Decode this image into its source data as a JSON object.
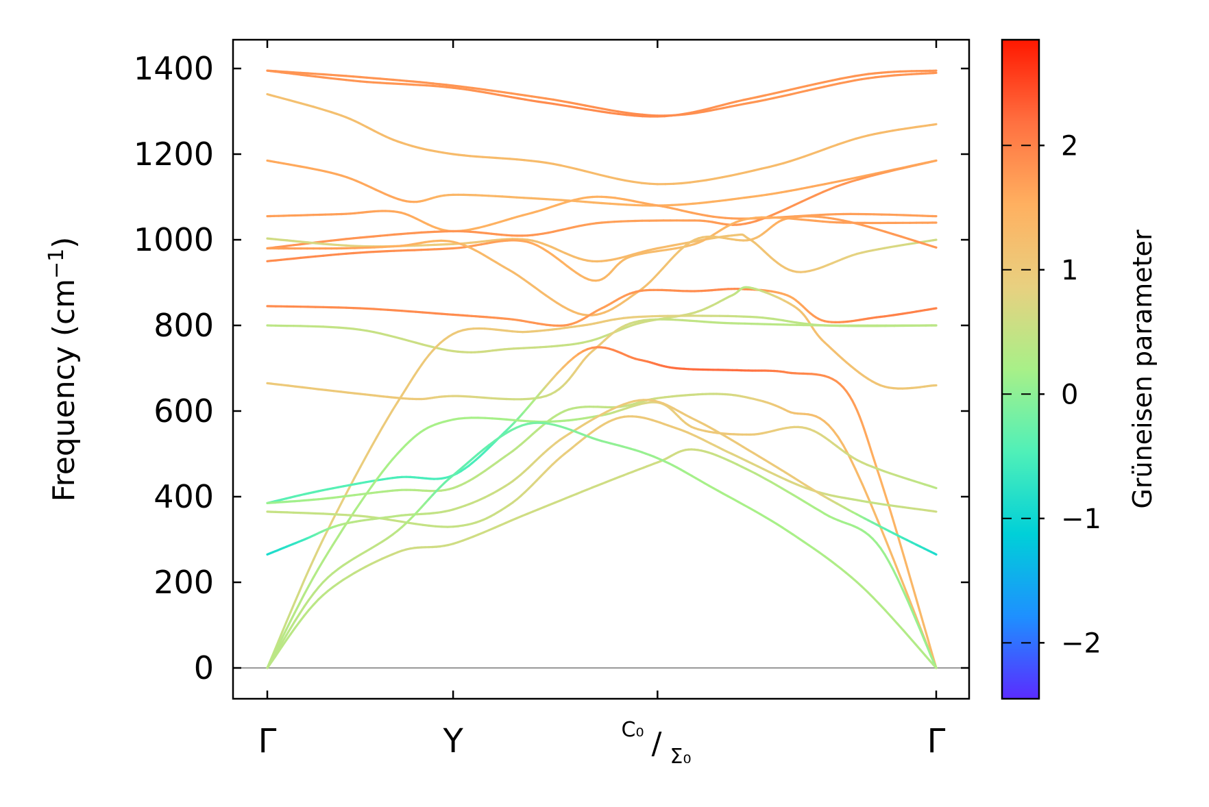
{
  "chart_data": {
    "type": "line",
    "title": "",
    "xlabel": "",
    "ylabel": "Frequency (cm",
    "ylabel_sup": "−1",
    "ylabel_close": ")",
    "ylim": [
      -70,
      1460
    ],
    "yticks": [
      0,
      200,
      400,
      600,
      800,
      1000,
      1200,
      1400
    ],
    "ytick_labels": [
      "0",
      "200",
      "400",
      "600",
      "800",
      "1000",
      "1200",
      "1400"
    ],
    "x_range": [
      0,
      3.6
    ],
    "x_ticks": [
      {
        "x": 0.0,
        "label": "Γ"
      },
      {
        "x": 1.0,
        "label": "Y"
      },
      {
        "x": 2.1,
        "label": "C₀/Σ₀",
        "label_top": "C₀",
        "label_bottom": "Σ₀"
      },
      {
        "x": 3.6,
        "label": "Γ"
      }
    ],
    "zero_line": 0,
    "colorbar": {
      "label": "Grüneisen parameter",
      "range": [
        -2.45,
        2.85
      ],
      "ticks": [
        -2,
        -1,
        0,
        1,
        2
      ],
      "tick_labels": [
        "−2",
        "−1",
        "0",
        "1",
        "2"
      ],
      "colormap": [
        "#5a2cff",
        "#1e90ff",
        "#00d0d8",
        "#50f0b8",
        "#a8f088",
        "#e8d080",
        "#ffb060",
        "#ff7040",
        "#ff1800"
      ]
    },
    "series": [
      {
        "name": "branch-01",
        "points": [
          [
            0,
            1395,
            1.8
          ],
          [
            0.5,
            1380,
            1.8
          ],
          [
            1,
            1360,
            1.8
          ],
          [
            1.5,
            1330,
            1.8
          ],
          [
            2.1,
            1290,
            1.9
          ],
          [
            2.6,
            1320,
            1.8
          ],
          [
            3.2,
            1375,
            1.8
          ],
          [
            3.6,
            1390,
            1.8
          ]
        ]
      },
      {
        "name": "branch-02",
        "points": [
          [
            0,
            1395,
            1.8
          ],
          [
            0.5,
            1370,
            1.8
          ],
          [
            1,
            1355,
            1.8
          ],
          [
            1.5,
            1320,
            1.9
          ],
          [
            2.1,
            1288,
            1.9
          ],
          [
            2.6,
            1330,
            1.8
          ],
          [
            3.2,
            1385,
            1.8
          ],
          [
            3.6,
            1395,
            1.8
          ]
        ]
      },
      {
        "name": "branch-03",
        "points": [
          [
            0,
            1340,
            1.2
          ],
          [
            0.4,
            1290,
            1.2
          ],
          [
            0.7,
            1230,
            1.3
          ],
          [
            1,
            1200,
            1.3
          ],
          [
            1.5,
            1180,
            1.3
          ],
          [
            2.1,
            1130,
            1.3
          ],
          [
            2.7,
            1170,
            1.3
          ],
          [
            3.2,
            1240,
            1.3
          ],
          [
            3.6,
            1270,
            1.3
          ]
        ]
      },
      {
        "name": "branch-04",
        "points": [
          [
            0,
            1185,
            1.6
          ],
          [
            0.4,
            1150,
            1.6
          ],
          [
            0.75,
            1090,
            1.6
          ],
          [
            1,
            1105,
            1.4
          ],
          [
            1.5,
            1095,
            1.4
          ],
          [
            2.1,
            1080,
            1.5
          ],
          [
            2.6,
            1100,
            1.5
          ],
          [
            3.0,
            1130,
            1.6
          ],
          [
            3.6,
            1185,
            1.6
          ]
        ]
      },
      {
        "name": "branch-05",
        "points": [
          [
            0,
            1055,
            1.7
          ],
          [
            0.4,
            1060,
            1.7
          ],
          [
            0.7,
            1065,
            1.6
          ],
          [
            1,
            1020,
            1.5
          ],
          [
            1.4,
            1060,
            1.5
          ],
          [
            1.75,
            1100,
            1.5
          ],
          [
            2.1,
            1080,
            1.6
          ],
          [
            2.5,
            1050,
            1.7
          ],
          [
            3.1,
            1060,
            1.7
          ],
          [
            3.6,
            1055,
            1.7
          ]
        ]
      },
      {
        "name": "branch-06",
        "points": [
          [
            0,
            980,
            1.8
          ],
          [
            0.5,
            1005,
            1.8
          ],
          [
            1,
            1020,
            1.8
          ],
          [
            1.4,
            1010,
            1.8
          ],
          [
            1.8,
            1040,
            1.7
          ],
          [
            2.3,
            1045,
            1.7
          ],
          [
            2.6,
            1040,
            1.8
          ],
          [
            3.1,
            1130,
            1.8
          ],
          [
            3.6,
            1185,
            1.6
          ]
        ]
      },
      {
        "name": "branch-07",
        "points": [
          [
            0,
            1003,
            0.6
          ],
          [
            0.5,
            985,
            0.8
          ],
          [
            1,
            990,
            1.0
          ],
          [
            1.4,
            1000,
            1.2
          ],
          [
            1.75,
            950,
            1.3
          ],
          [
            2.1,
            980,
            1.3
          ],
          [
            2.5,
            1010,
            1.1
          ],
          [
            2.6,
            1000,
            1.1
          ],
          [
            2.85,
            925,
            1.1
          ],
          [
            3.2,
            970,
            0.8
          ],
          [
            3.6,
            1000,
            0.6
          ]
        ]
      },
      {
        "name": "branch-08",
        "points": [
          [
            0,
            950,
            1.9
          ],
          [
            0.5,
            970,
            1.9
          ],
          [
            1,
            980,
            1.8
          ],
          [
            1.4,
            995,
            1.6
          ],
          [
            1.75,
            905,
            1.4
          ],
          [
            1.95,
            960,
            1.3
          ],
          [
            2.3,
            990,
            1.3
          ],
          [
            2.6,
            1050,
            1.5
          ],
          [
            3.1,
            1040,
            1.7
          ],
          [
            3.6,
            1040,
            1.7
          ]
        ]
      },
      {
        "name": "branch-09",
        "points": [
          [
            0,
            980,
            1.7
          ],
          [
            0.4,
            980,
            1.7
          ],
          [
            0.7,
            985,
            1.5
          ],
          [
            1,
            995,
            1.4
          ],
          [
            1.3,
            930,
            1.3
          ],
          [
            1.7,
            825,
            1.3
          ],
          [
            2.0,
            880,
            1.2
          ],
          [
            2.3,
            1000,
            1.1
          ],
          [
            2.6,
            1000,
            1.2
          ],
          [
            2.8,
            1050,
            1.6
          ],
          [
            3.1,
            1045,
            1.7
          ],
          [
            3.6,
            982,
            1.8
          ]
        ]
      },
      {
        "name": "branch-10",
        "points": [
          [
            0,
            845,
            1.9
          ],
          [
            0.5,
            840,
            1.9
          ],
          [
            1,
            825,
            1.9
          ],
          [
            1.3,
            815,
            1.8
          ],
          [
            1.6,
            800,
            1.8
          ],
          [
            1.8,
            840,
            1.7
          ],
          [
            2.0,
            880,
            1.8
          ],
          [
            2.3,
            880,
            1.9
          ],
          [
            2.55,
            885,
            1.9
          ],
          [
            2.8,
            870,
            1.6
          ],
          [
            3.0,
            810,
            1.8
          ],
          [
            3.3,
            820,
            2.0
          ],
          [
            3.6,
            840,
            2.0
          ]
        ]
      },
      {
        "name": "branch-11",
        "points": [
          [
            0,
            800,
            0.4
          ],
          [
            0.5,
            790,
            0.5
          ],
          [
            1,
            740,
            0.6
          ],
          [
            1.3,
            745,
            0.6
          ],
          [
            1.7,
            760,
            0.5
          ],
          [
            2.0,
            805,
            0.6
          ],
          [
            2.3,
            830,
            0.6
          ],
          [
            2.5,
            870,
            0.5
          ],
          [
            2.6,
            888,
            0.4
          ],
          [
            2.85,
            840,
            1.1
          ],
          [
            3.0,
            760,
            1.2
          ],
          [
            3.3,
            660,
            1.1
          ],
          [
            3.6,
            660,
            1.0
          ]
        ]
      },
      {
        "name": "branch-12",
        "points": [
          [
            0,
            665,
            1.0
          ],
          [
            0.5,
            640,
            1.0
          ],
          [
            0.8,
            628,
            1.0
          ],
          [
            1,
            635,
            0.8
          ],
          [
            1.5,
            635,
            0.6
          ],
          [
            1.75,
            740,
            1.0
          ],
          [
            2.0,
            810,
            0.6
          ],
          [
            2.5,
            805,
            0.4
          ],
          [
            3.0,
            800,
            0.4
          ],
          [
            3.6,
            800,
            0.4
          ]
        ]
      },
      {
        "name": "branch-13",
        "points": [
          [
            0,
            0,
            0.4
          ],
          [
            0.3,
            300,
            0.8
          ],
          [
            0.7,
            620,
            1.0
          ],
          [
            1,
            780,
            1.0
          ],
          [
            1.4,
            785,
            1.0
          ],
          [
            1.7,
            800,
            1.0
          ],
          [
            2.0,
            820,
            0.9
          ],
          [
            2.6,
            820,
            0.5
          ],
          [
            3.0,
            800,
            0.4
          ],
          [
            3.6,
            800,
            0.4
          ]
        ]
      },
      {
        "name": "branch-14",
        "points": [
          [
            0,
            385,
            -0.4
          ],
          [
            0.3,
            415,
            -0.4
          ],
          [
            0.7,
            445,
            -0.5
          ],
          [
            1,
            450,
            -0.5
          ],
          [
            1.3,
            560,
            -0.3
          ],
          [
            1.7,
            740,
            1.7
          ],
          [
            2.0,
            720,
            2.0
          ],
          [
            2.2,
            700,
            2.2
          ],
          [
            2.55,
            695,
            2.2
          ],
          [
            2.8,
            690,
            2.0
          ],
          [
            3.1,
            655,
            1.8
          ],
          [
            3.3,
            440,
            1.5
          ],
          [
            3.6,
            0,
            1.3
          ]
        ]
      },
      {
        "name": "branch-15",
        "points": [
          [
            0,
            385,
            0.1
          ],
          [
            0.3,
            395,
            0.2
          ],
          [
            0.7,
            415,
            0.3
          ],
          [
            1,
            420,
            0.4
          ],
          [
            1.3,
            500,
            0.4
          ],
          [
            1.6,
            600,
            0.4
          ],
          [
            1.9,
            610,
            0.5
          ],
          [
            2.1,
            630,
            0.6
          ],
          [
            2.4,
            640,
            0.6
          ],
          [
            2.6,
            630,
            0.8
          ],
          [
            2.8,
            600,
            1.1
          ],
          [
            3.1,
            520,
            1.3
          ],
          [
            3.6,
            0,
            1.3
          ]
        ]
      },
      {
        "name": "branch-16",
        "points": [
          [
            0,
            0,
            0.4
          ],
          [
            0.3,
            250,
            0.3
          ],
          [
            0.7,
            500,
            0.2
          ],
          [
            1,
            580,
            0.2
          ],
          [
            1.5,
            575,
            0.2
          ],
          [
            1.8,
            590,
            0.4
          ],
          [
            2.1,
            620,
            0.8
          ],
          [
            2.3,
            560,
            1.0
          ],
          [
            2.6,
            545,
            1.0
          ],
          [
            2.9,
            560,
            0.8
          ],
          [
            3.2,
            480,
            0.6
          ],
          [
            3.6,
            420,
            0.4
          ]
        ]
      },
      {
        "name": "branch-17",
        "points": [
          [
            0,
            365,
            0.5
          ],
          [
            0.5,
            355,
            0.5
          ],
          [
            1,
            330,
            0.5
          ],
          [
            1.3,
            380,
            0.6
          ],
          [
            1.6,
            500,
            0.9
          ],
          [
            1.9,
            585,
            1.0
          ],
          [
            2.2,
            560,
            1.0
          ],
          [
            2.5,
            500,
            0.8
          ],
          [
            2.9,
            420,
            0.7
          ],
          [
            3.2,
            390,
            0.5
          ],
          [
            3.6,
            365,
            0.6
          ]
        ]
      },
      {
        "name": "branch-18",
        "points": [
          [
            0,
            265,
            -0.9
          ],
          [
            0.2,
            300,
            -0.6
          ],
          [
            0.4,
            335,
            0.3
          ],
          [
            0.7,
            355,
            0.4
          ],
          [
            1,
            370,
            0.5
          ],
          [
            1.3,
            430,
            0.6
          ],
          [
            1.6,
            540,
            0.9
          ],
          [
            2.0,
            625,
            1.0
          ],
          [
            2.3,
            580,
            1.0
          ],
          [
            2.7,
            480,
            1.0
          ],
          [
            3.0,
            400,
            0.8
          ],
          [
            3.3,
            330,
            -0.3
          ],
          [
            3.6,
            265,
            -0.9
          ]
        ]
      },
      {
        "name": "branch-19",
        "points": [
          [
            0,
            0,
            0.4
          ],
          [
            0.3,
            170,
            0.4
          ],
          [
            0.7,
            270,
            0.6
          ],
          [
            1,
            290,
            0.6
          ],
          [
            1.4,
            360,
            0.6
          ],
          [
            1.8,
            430,
            0.6
          ],
          [
            2.1,
            480,
            0.6
          ],
          [
            2.3,
            510,
            0.6
          ],
          [
            2.6,
            460,
            0.4
          ],
          [
            3.0,
            360,
            0.2
          ],
          [
            3.3,
            280,
            0.1
          ],
          [
            3.6,
            0,
            0.1
          ]
        ]
      },
      {
        "name": "branch-20",
        "points": [
          [
            0,
            0,
            0.4
          ],
          [
            0.3,
            200,
            0.4
          ],
          [
            0.7,
            320,
            0.4
          ],
          [
            1,
            450,
            -0.3
          ],
          [
            1.4,
            570,
            -0.2
          ],
          [
            1.8,
            530,
            0.0
          ],
          [
            2.1,
            490,
            0.1
          ],
          [
            2.4,
            420,
            0.2
          ],
          [
            2.8,
            320,
            0.2
          ],
          [
            3.2,
            190,
            0.3
          ],
          [
            3.6,
            0,
            0.3
          ]
        ]
      }
    ]
  }
}
